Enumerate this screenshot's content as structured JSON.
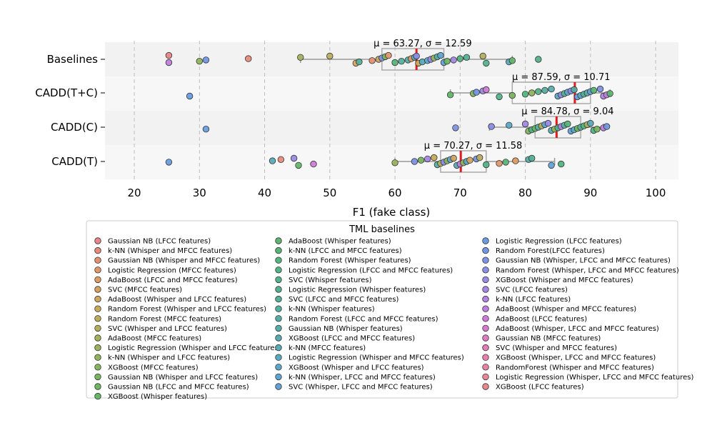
{
  "chart_data": {
    "type": "scatter",
    "subtype": "strip plot with box plots",
    "xlabel": "F1 (fake class)",
    "xlim": [
      15.5,
      103.5
    ],
    "xticks": [
      20,
      30,
      40,
      50,
      60,
      70,
      80,
      90,
      100
    ],
    "grid": "vertical dashed",
    "categories": [
      "Baselines",
      "CADD(T+C)",
      "CADD(C)",
      "CADD(T)"
    ],
    "groups": [
      {
        "name": "Baselines",
        "stat_label": "μ = 63.27, σ = 12.59",
        "median": 63.3,
        "box": {
          "q1": 58.0,
          "q3": 67.5,
          "whisker_low": 45.5,
          "whisker_high": 78.0
        },
        "points": [
          {
            "x": 25.3,
            "c": 0
          },
          {
            "x": 25.3,
            "c": 40
          },
          {
            "x": 30.0,
            "c": 12
          },
          {
            "x": 31.0,
            "c": 34
          },
          {
            "x": 37.5,
            "c": 1
          },
          {
            "x": 45.5,
            "c": 10
          },
          {
            "x": 50.0,
            "c": 8
          },
          {
            "x": 54.0,
            "c": 5
          },
          {
            "x": 54.5,
            "c": 23
          },
          {
            "x": 56.5,
            "c": 2
          },
          {
            "x": 57.5,
            "c": 6
          },
          {
            "x": 58.0,
            "c": 35
          },
          {
            "x": 58.5,
            "c": 14
          },
          {
            "x": 59.0,
            "c": 3
          },
          {
            "x": 60.0,
            "c": 18
          },
          {
            "x": 61.0,
            "c": 24
          },
          {
            "x": 62.0,
            "c": 26
          },
          {
            "x": 62.5,
            "c": 4
          },
          {
            "x": 63.0,
            "c": 27
          },
          {
            "x": 63.3,
            "c": 36
          },
          {
            "x": 63.6,
            "c": 7
          },
          {
            "x": 64.2,
            "c": 28
          },
          {
            "x": 65.0,
            "c": 30
          },
          {
            "x": 65.5,
            "c": 37
          },
          {
            "x": 66.0,
            "c": 11
          },
          {
            "x": 66.5,
            "c": 25
          },
          {
            "x": 67.0,
            "c": 31
          },
          {
            "x": 67.5,
            "c": 32
          },
          {
            "x": 68.0,
            "c": 15
          },
          {
            "x": 69.0,
            "c": 38
          },
          {
            "x": 70.0,
            "c": 19
          },
          {
            "x": 71.0,
            "c": 22
          },
          {
            "x": 73.5,
            "c": 9
          },
          {
            "x": 74.0,
            "c": 21
          },
          {
            "x": 77.5,
            "c": 29
          },
          {
            "x": 78.0,
            "c": 16
          },
          {
            "x": 82.0,
            "c": 20
          }
        ]
      },
      {
        "name": "CADD(T+C)",
        "stat_label": "μ = 87.59, σ = 10.71",
        "median": 87.6,
        "box": {
          "q1": 78.0,
          "q3": 90.0,
          "whisker_low": 68.5,
          "whisker_high": 93.0
        },
        "points": [
          {
            "x": 28.5,
            "c": 33
          },
          {
            "x": 68.5,
            "c": 16
          },
          {
            "x": 72.0,
            "c": 13
          },
          {
            "x": 72.5,
            "c": 34
          },
          {
            "x": 73.5,
            "c": 38
          },
          {
            "x": 74.0,
            "c": 41
          },
          {
            "x": 76.0,
            "c": 21
          },
          {
            "x": 78.0,
            "c": 14
          },
          {
            "x": 80.0,
            "c": 19
          },
          {
            "x": 81.0,
            "c": 12
          },
          {
            "x": 82.0,
            "c": 20
          },
          {
            "x": 83.0,
            "c": 24
          },
          {
            "x": 84.0,
            "c": 27
          },
          {
            "x": 85.0,
            "c": 30
          },
          {
            "x": 85.5,
            "c": 37
          },
          {
            "x": 86.0,
            "c": 22
          },
          {
            "x": 86.5,
            "c": 31
          },
          {
            "x": 87.0,
            "c": 36
          },
          {
            "x": 87.5,
            "c": 25
          },
          {
            "x": 88.0,
            "c": 33
          },
          {
            "x": 88.5,
            "c": 29
          },
          {
            "x": 89.0,
            "c": 23
          },
          {
            "x": 89.5,
            "c": 26
          },
          {
            "x": 90.0,
            "c": 32
          },
          {
            "x": 90.5,
            "c": 18
          },
          {
            "x": 91.5,
            "c": 35
          },
          {
            "x": 92.0,
            "c": 39
          },
          {
            "x": 92.5,
            "c": 40
          },
          {
            "x": 93.0,
            "c": 17
          }
        ]
      },
      {
        "name": "CADD(C)",
        "stat_label": "μ = 84.78, σ = 9.04",
        "median": 84.8,
        "box": {
          "q1": 81.5,
          "q3": 88.5,
          "whisker_low": 74.5,
          "whisker_high": 92.0
        },
        "points": [
          {
            "x": 31.0,
            "c": 33
          },
          {
            "x": 69.3,
            "c": 35
          },
          {
            "x": 74.8,
            "c": 36
          },
          {
            "x": 77.5,
            "c": 30
          },
          {
            "x": 80.0,
            "c": 38
          },
          {
            "x": 80.5,
            "c": 13
          },
          {
            "x": 81.0,
            "c": 20
          },
          {
            "x": 81.5,
            "c": 16
          },
          {
            "x": 82.0,
            "c": 24
          },
          {
            "x": 82.5,
            "c": 9
          },
          {
            "x": 83.0,
            "c": 31
          },
          {
            "x": 83.5,
            "c": 37
          },
          {
            "x": 84.0,
            "c": 27
          },
          {
            "x": 84.5,
            "c": 12
          },
          {
            "x": 85.0,
            "c": 22
          },
          {
            "x": 85.5,
            "c": 39
          },
          {
            "x": 86.0,
            "c": 25
          },
          {
            "x": 86.5,
            "c": 18
          },
          {
            "x": 87.0,
            "c": 32
          },
          {
            "x": 87.5,
            "c": 29
          },
          {
            "x": 88.0,
            "c": 15
          },
          {
            "x": 88.5,
            "c": 23
          },
          {
            "x": 89.0,
            "c": 19
          },
          {
            "x": 89.5,
            "c": 10
          },
          {
            "x": 90.0,
            "c": 28
          },
          {
            "x": 90.5,
            "c": 21
          },
          {
            "x": 91.0,
            "c": 14
          },
          {
            "x": 92.0,
            "c": 40
          },
          {
            "x": 92.5,
            "c": 34
          }
        ]
      },
      {
        "name": "CADD(T)",
        "stat_label": "μ = 70.27, σ = 11.58",
        "median": 70.1,
        "box": {
          "q1": 67.0,
          "q3": 74.0,
          "whisker_low": 60.0,
          "whisker_high": 84.5
        },
        "points": [
          {
            "x": 25.3,
            "c": 33
          },
          {
            "x": 41.2,
            "c": 28
          },
          {
            "x": 42.5,
            "c": 1
          },
          {
            "x": 44.5,
            "c": 37
          },
          {
            "x": 45.2,
            "c": 16
          },
          {
            "x": 47.5,
            "c": 41
          },
          {
            "x": 60.0,
            "c": 11
          },
          {
            "x": 63.0,
            "c": 35
          },
          {
            "x": 64.0,
            "c": 14
          },
          {
            "x": 65.0,
            "c": 38
          },
          {
            "x": 66.0,
            "c": 7
          },
          {
            "x": 66.5,
            "c": 24
          },
          {
            "x": 67.0,
            "c": 9
          },
          {
            "x": 67.5,
            "c": 36
          },
          {
            "x": 68.0,
            "c": 13
          },
          {
            "x": 68.5,
            "c": 31
          },
          {
            "x": 69.0,
            "c": 6
          },
          {
            "x": 69.5,
            "c": 27
          },
          {
            "x": 70.0,
            "c": 40
          },
          {
            "x": 70.5,
            "c": 12
          },
          {
            "x": 71.0,
            "c": 29
          },
          {
            "x": 71.5,
            "c": 5
          },
          {
            "x": 72.5,
            "c": 34
          },
          {
            "x": 73.0,
            "c": 8
          },
          {
            "x": 74.0,
            "c": 20
          },
          {
            "x": 76.0,
            "c": 3
          },
          {
            "x": 77.0,
            "c": 18
          },
          {
            "x": 78.5,
            "c": 4
          },
          {
            "x": 80.5,
            "c": 25
          },
          {
            "x": 81.0,
            "c": 22
          },
          {
            "x": 84.0,
            "c": 32
          },
          {
            "x": 85.5,
            "c": 19
          }
        ]
      }
    ],
    "legend": {
      "title": "TML baselines",
      "placement": "bottom",
      "items": [
        {
          "label": "Gaussian NB (LFCC features)",
          "color": "#e8848a"
        },
        {
          "label": "k-NN (Whisper and MFCC features)",
          "color": "#e88a7a"
        },
        {
          "label": "Gaussian NB (Whisper and MFCC features)",
          "color": "#e58f72"
        },
        {
          "label": "Logistic Regression (MFCC features)",
          "color": "#e2966a"
        },
        {
          "label": "AdaBoost (LFCC and MFCC features)",
          "color": "#dd9c62"
        },
        {
          "label": "SVC (MFCC features)",
          "color": "#d7a25e"
        },
        {
          "label": "AdaBoost (Whisper and LFCC features)",
          "color": "#cfa65d"
        },
        {
          "label": "Random Forest (Whisper and LFCC features)",
          "color": "#c5a95c"
        },
        {
          "label": "Random Forest (MFCC features)",
          "color": "#bbac5c"
        },
        {
          "label": "SVC (Whisper and LFCC features)",
          "color": "#b1ae5c"
        },
        {
          "label": "AdaBoost (MFCC features)",
          "color": "#a6b05c"
        },
        {
          "label": "Logistic Regression (Whisper and LFCC features)",
          "color": "#9bb25c"
        },
        {
          "label": "k-NN (Whisper and LFCC features)",
          "color": "#90b35c"
        },
        {
          "label": "XGBoost (MFCC features)",
          "color": "#84b45d"
        },
        {
          "label": "Gaussian NB (Whisper and LFCC features)",
          "color": "#78b55f"
        },
        {
          "label": "Gaussian NB (LFCC and MFCC features)",
          "color": "#6db662"
        },
        {
          "label": "XGBoost (Whisper features)",
          "color": "#63b766"
        },
        {
          "label": "AdaBoost (Whisper features)",
          "color": "#5cb66e"
        },
        {
          "label": "k-NN (LFCC and MFCC features)",
          "color": "#57b576"
        },
        {
          "label": "Random Forest (Whisper features)",
          "color": "#53b47e"
        },
        {
          "label": "Logistic Regression (LFCC and MFCC features)",
          "color": "#52b385"
        },
        {
          "label": "SVC (Whisper features)",
          "color": "#52b28c"
        },
        {
          "label": "Logistic Regression (Whisper features)",
          "color": "#53b192"
        },
        {
          "label": "SVC (LFCC and MFCC features)",
          "color": "#54b098"
        },
        {
          "label": "k-NN (Whisper features)",
          "color": "#55af9e"
        },
        {
          "label": "Random Forest (LFCC and MFCC features)",
          "color": "#56aea4"
        },
        {
          "label": "Gaussian NB (Whisper features)",
          "color": "#57adaa"
        },
        {
          "label": "XGBoost (LFCC and MFCC features)",
          "color": "#58acb1"
        },
        {
          "label": "k-NN (MFCC features)",
          "color": "#59abb8"
        },
        {
          "label": "Logistic Regression (Whisper and MFCC features)",
          "color": "#5aa9c0"
        },
        {
          "label": "XGBoost (Whisper and LFCC features)",
          "color": "#5ca7c8"
        },
        {
          "label": "k-NN (Whisper, LFCC and MFCC features)",
          "color": "#5fa4d0"
        },
        {
          "label": "SVC (Whisper, LFCC and MFCC features)",
          "color": "#63a1d8"
        },
        {
          "label": "Logistic Regression (LFCC features)",
          "color": "#689cdf"
        },
        {
          "label": "Random Forest(LFCC features)",
          "color": "#7097e4"
        },
        {
          "label": "Gaussian NB (Whisper, LFCC and MFCC features)",
          "color": "#7d92e6"
        },
        {
          "label": "Random Forest (Whisper, LFCC and MFCC features)",
          "color": "#8a8ee7"
        },
        {
          "label": "XGBoost (Whisper and MFCC features)",
          "color": "#978ae6"
        },
        {
          "label": "SVC (LFCC features)",
          "color": "#a486e4"
        },
        {
          "label": "k-NN (LFCC features)",
          "color": "#b282e1"
        },
        {
          "label": "AdaBoost (Whisper and MFCC features)",
          "color": "#c07edc"
        },
        {
          "label": "AdaBoost (LFCC features)",
          "color": "#cc7bd6"
        },
        {
          "label": "AdaBoost (Whisper, LFCC and MFCC features)",
          "color": "#d77acd"
        },
        {
          "label": "Gaussian NB (MFCC features)",
          "color": "#df7bc3"
        },
        {
          "label": "SVC (Whisper and MFCC features)",
          "color": "#e47db8"
        },
        {
          "label": "XGBoost (Whisper, LFCC and MFCC features)",
          "color": "#e780ad"
        },
        {
          "label": "RandomForest (Whisper and MFCC features)",
          "color": "#e982a2"
        },
        {
          "label": "Logistic Regression (Whisper, LFCC and MFCC features)",
          "color": "#e98597"
        },
        {
          "label": "XGBoost (LFCC features)",
          "color": "#e9878d"
        }
      ]
    }
  }
}
